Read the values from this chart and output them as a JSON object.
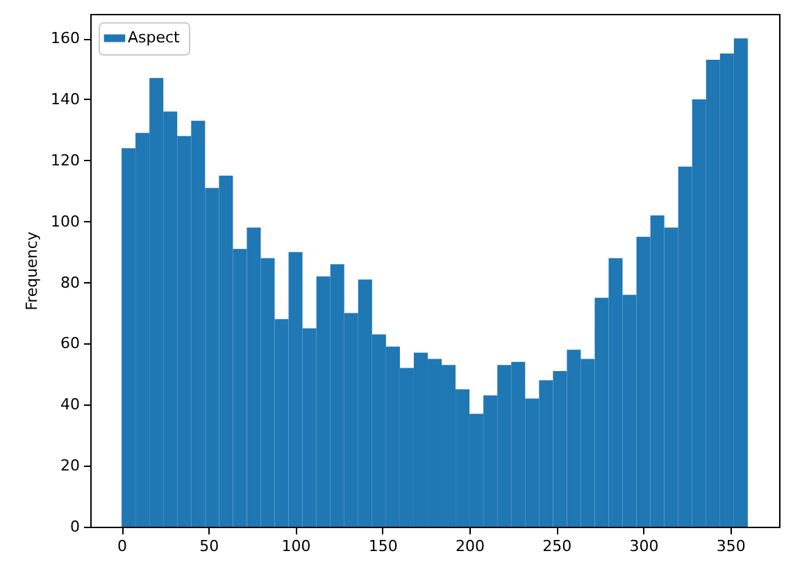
{
  "chart_data": {
    "type": "histogram",
    "ylabel": "Frequency",
    "bins": [
      0,
      8,
      16,
      24,
      32,
      40,
      48,
      56,
      64,
      72,
      80,
      88,
      96,
      104,
      112,
      120,
      128,
      136,
      144,
      152,
      160,
      168,
      176,
      184,
      192,
      200,
      208,
      216,
      224,
      232,
      240,
      248,
      256,
      264,
      272,
      280,
      288,
      296,
      304,
      312,
      320,
      328,
      336,
      344,
      352,
      360
    ],
    "series": [
      {
        "name": "Aspect",
        "color": "#1f77b4",
        "values": [
          124,
          129,
          147,
          136,
          128,
          133,
          111,
          115,
          91,
          98,
          88,
          68,
          90,
          65,
          82,
          86,
          70,
          81,
          63,
          59,
          52,
          57,
          55,
          53,
          45,
          37,
          43,
          53,
          54,
          42,
          48,
          51,
          58,
          55,
          75,
          88,
          76,
          95,
          102,
          98,
          118,
          140,
          153,
          155,
          160
        ]
      }
    ],
    "xlim": [
      -18,
      378
    ],
    "xticks": [
      0,
      50,
      100,
      150,
      200,
      250,
      300,
      350
    ],
    "ylim": [
      0,
      168
    ],
    "yticks": [
      0,
      20,
      40,
      60,
      80,
      100,
      120,
      140,
      160
    ],
    "legend": "top left",
    "grid": false
  }
}
